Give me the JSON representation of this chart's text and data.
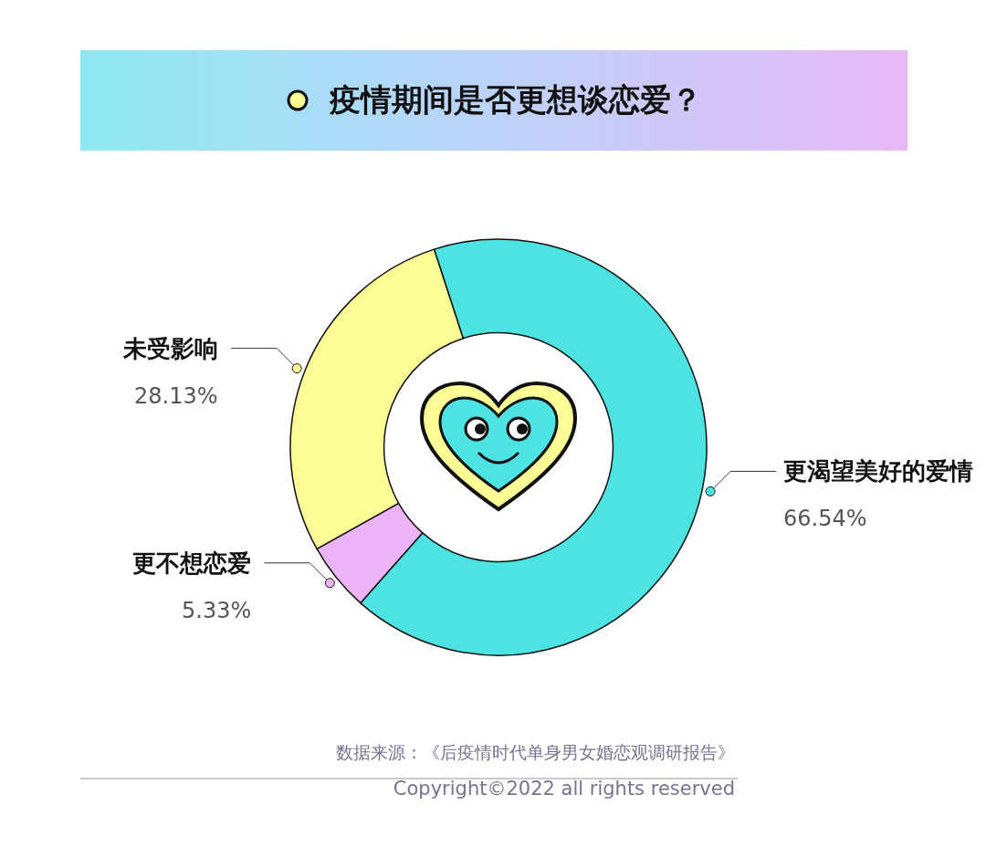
{
  "chart_data": {
    "type": "donut",
    "title": "疫情期间是否更想谈恋爱？",
    "categories": [
      "更渴望美好的爱情",
      "更不想恋爱",
      "未受影响"
    ],
    "values": [
      66.54,
      5.33,
      28.13
    ],
    "value_labels": [
      "66.54%",
      "5.33%",
      "28.13%"
    ],
    "colors": [
      "#4de3e3",
      "#ecb3f7",
      "#fdfd96"
    ],
    "annotations": [
      "数据来源：《后疫情时代单身男女婚恋观调研报告》",
      "Copyright©2022  all rights reserved"
    ],
    "legend": false
  }
}
